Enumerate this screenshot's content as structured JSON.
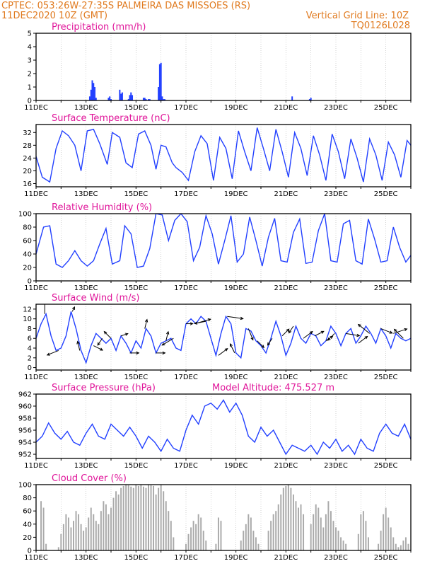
{
  "header": {
    "line1": "CPTEC:   053:26W-27:35S   PALMEIRA DAS MISSOES (RS)",
    "line2": "11DEC2020 10Z (GMT)",
    "grid_note": "Vertical Grid Line: 10Z",
    "code": "TQ0126L028"
  },
  "colors": {
    "header": "#e07a1f",
    "title": "#e0169a",
    "line": "#2240ff",
    "bar": "#2240ff",
    "cloud": "#a9a9a9",
    "arrow": "#000000"
  },
  "chart_data": [
    {
      "type": "bar",
      "id": "precip",
      "title": "Precipitation (mm/h)",
      "ylim": [
        0,
        5
      ],
      "yticks": [
        0,
        1,
        2,
        3,
        4,
        5
      ],
      "xlim": [
        0,
        15
      ],
      "xtick_labels": [
        "11DEC",
        "13DEC",
        "15DEC",
        "17DEC",
        "19DEC",
        "21DEC",
        "23DEC",
        "25DEC"
      ],
      "x": [
        2.15,
        2.2,
        2.25,
        2.3,
        2.35,
        2.4,
        2.9,
        2.95,
        3.0,
        3.35,
        3.4,
        3.45,
        3.7,
        3.75,
        3.8,
        3.85,
        4.3,
        4.35,
        4.4,
        4.5,
        4.55,
        4.9,
        4.95,
        5.0,
        5.05,
        5.1,
        5.15,
        10.25,
        10.95,
        11.0
      ],
      "values": [
        0.3,
        0.8,
        1.5,
        1.3,
        1.0,
        0.2,
        0.2,
        0.3,
        0.1,
        0.8,
        0.5,
        0.6,
        0.1,
        0.4,
        0.6,
        0.4,
        0.2,
        0.2,
        0.1,
        0.1,
        0.1,
        1.0,
        2.7,
        2.8,
        0.3,
        0.1,
        0.1,
        0.3,
        0.1,
        0.2
      ]
    },
    {
      "type": "line",
      "id": "temperature",
      "title": "Surface Temperature (nC)",
      "ylim": [
        15,
        34.5
      ],
      "yticks": [
        16,
        20,
        24,
        28,
        32
      ],
      "xlim": [
        0,
        15
      ],
      "xtick_labels": [
        "11DEC",
        "13DEC",
        "15DEC",
        "17DEC",
        "19DEC",
        "21DEC",
        "23DEC",
        "25DEC"
      ],
      "x": [
        0,
        0.25,
        0.55,
        0.8,
        1.05,
        1.3,
        1.55,
        1.8,
        2.05,
        2.3,
        2.55,
        2.85,
        3.05,
        3.35,
        3.6,
        3.85,
        4.1,
        4.35,
        4.6,
        4.8,
        5.0,
        5.2,
        5.45,
        5.6,
        5.85,
        6.1,
        6.35,
        6.6,
        6.85,
        7.1,
        7.35,
        7.6,
        7.85,
        8.1,
        8.35,
        8.6,
        8.85,
        9.1,
        9.35,
        9.6,
        9.85,
        10.1,
        10.35,
        10.6,
        10.85,
        11.1,
        11.35,
        11.6,
        11.85,
        12.1,
        12.35,
        12.6,
        12.85,
        13.1,
        13.35,
        13.6,
        13.85,
        14.1,
        14.35,
        14.6,
        14.85,
        15.0
      ],
      "values": [
        24.5,
        18.0,
        16.5,
        27.0,
        32.5,
        31.0,
        28.0,
        20.0,
        32.5,
        33.0,
        28.5,
        22.0,
        32.0,
        30.5,
        22.5,
        21.0,
        31.5,
        32.5,
        28.0,
        20.5,
        28.0,
        27.5,
        22.5,
        21.0,
        19.5,
        17.0,
        26.0,
        31.0,
        28.5,
        17.0,
        30.5,
        27.0,
        17.5,
        32.5,
        26.0,
        20.0,
        33.5,
        27.0,
        20.0,
        33.0,
        26.0,
        18.0,
        32.0,
        27.0,
        18.5,
        31.0,
        25.0,
        17.0,
        31.5,
        26.0,
        17.5,
        30.0,
        24.0,
        16.5,
        30.0,
        25.0,
        17.0,
        29.0,
        25.0,
        18.0,
        29.5,
        28.0
      ]
    },
    {
      "type": "line",
      "id": "humidity",
      "title": "Relative Humidity (%)",
      "ylim": [
        0,
        100
      ],
      "yticks": [
        0,
        20,
        40,
        60,
        80,
        100
      ],
      "xlim": [
        0,
        15
      ],
      "xtick_labels": [
        "11DEC",
        "13DEC",
        "15DEC",
        "17DEC",
        "19DEC",
        "21DEC",
        "23DEC",
        "25DEC"
      ],
      "x": [
        0,
        0.3,
        0.55,
        0.8,
        1.05,
        1.3,
        1.55,
        1.8,
        2.05,
        2.3,
        2.55,
        2.8,
        3.05,
        3.35,
        3.55,
        3.8,
        4.05,
        4.3,
        4.55,
        4.8,
        5.05,
        5.3,
        5.55,
        5.8,
        6.05,
        6.3,
        6.55,
        6.8,
        7.05,
        7.3,
        7.55,
        7.8,
        8.05,
        8.3,
        8.55,
        8.8,
        9.05,
        9.3,
        9.55,
        9.8,
        10.05,
        10.3,
        10.55,
        10.8,
        11.05,
        11.3,
        11.55,
        11.8,
        12.05,
        12.3,
        12.55,
        12.8,
        13.05,
        13.3,
        13.55,
        13.8,
        14.05,
        14.3,
        14.55,
        14.8,
        15.0
      ],
      "values": [
        40,
        80,
        82,
        25,
        20,
        30,
        45,
        30,
        22,
        30,
        55,
        78,
        25,
        30,
        82,
        70,
        20,
        22,
        48,
        100,
        98,
        60,
        90,
        100,
        88,
        30,
        50,
        97,
        70,
        25,
        60,
        97,
        28,
        40,
        95,
        60,
        22,
        65,
        93,
        30,
        28,
        72,
        92,
        26,
        28,
        75,
        100,
        30,
        28,
        85,
        90,
        30,
        25,
        92,
        62,
        28,
        30,
        80,
        50,
        28,
        38
      ]
    },
    {
      "type": "line",
      "id": "wind",
      "title": "Surface Wind (m/s)",
      "ylim": [
        -0.5,
        13
      ],
      "yticks": [
        0,
        2,
        4,
        6,
        8,
        10,
        12
      ],
      "xlim": [
        0,
        15
      ],
      "xtick_labels": [
        "11DEC",
        "13DEC",
        "15DEC",
        "17DEC",
        "19DEC",
        "21DEC",
        "23DEC",
        "25DEC"
      ],
      "x": [
        0,
        0.2,
        0.4,
        0.6,
        0.8,
        1.0,
        1.2,
        1.4,
        1.6,
        1.8,
        2.0,
        2.2,
        2.4,
        2.6,
        2.8,
        3.0,
        3.2,
        3.4,
        3.6,
        3.8,
        4.0,
        4.2,
        4.4,
        4.6,
        4.8,
        5.0,
        5.2,
        5.4,
        5.6,
        5.8,
        6.0,
        6.2,
        6.4,
        6.6,
        6.8,
        7.0,
        7.2,
        7.4,
        7.6,
        7.8,
        8.0,
        8.2,
        8.4,
        8.6,
        8.8,
        9.0,
        9.2,
        9.4,
        9.6,
        9.8,
        10.0,
        10.2,
        10.4,
        10.6,
        10.8,
        11.0,
        11.2,
        11.4,
        11.6,
        11.8,
        12.0,
        12.2,
        12.4,
        12.6,
        12.8,
        13.0,
        13.2,
        13.4,
        13.6,
        13.8,
        14.0,
        14.2,
        14.4,
        14.6,
        14.8,
        15.0
      ],
      "values": [
        6.0,
        9.0,
        11.0,
        6.5,
        3.5,
        4.0,
        6.5,
        11.5,
        8.0,
        3.5,
        1.0,
        4.5,
        7.0,
        6.0,
        5.0,
        6.0,
        3.5,
        6.5,
        5.0,
        3.0,
        5.5,
        4.0,
        8.0,
        6.5,
        3.0,
        5.0,
        5.5,
        6.0,
        4.0,
        3.5,
        9.0,
        10.0,
        9.0,
        10.5,
        9.5,
        6.0,
        2.5,
        7.0,
        10.5,
        9.0,
        3.0,
        2.0,
        8.0,
        7.5,
        5.5,
        4.5,
        3.0,
        6.0,
        9.5,
        6.5,
        2.5,
        5.0,
        8.5,
        6.0,
        5.0,
        7.0,
        6.5,
        4.5,
        5.5,
        8.5,
        7.0,
        4.5,
        7.0,
        8.0,
        5.0,
        6.5,
        8.5,
        7.0,
        5.0,
        8.0,
        6.5,
        4.0,
        7.0,
        6.0,
        5.5,
        6.0
      ],
      "vectors": {
        "x": [
          0.35,
          0.9,
          1.45,
          1.75,
          2.3,
          2.65,
          3.0,
          3.4,
          3.75,
          4.35,
          4.8,
          5.2,
          5.5,
          6.0,
          6.35,
          6.8,
          7.3,
          7.65,
          7.95,
          8.5,
          8.85,
          9.45,
          9.85,
          10.3,
          10.7,
          11.15,
          11.6,
          11.95,
          12.4,
          12.9,
          13.35,
          13.8,
          14.3,
          14.7
        ],
        "u": [
          0,
          -5,
          1,
          -1,
          4,
          -2,
          -3,
          3,
          4,
          1,
          4,
          1,
          -5,
          3,
          7,
          -5,
          4,
          7,
          -2,
          2,
          3,
          -2,
          3,
          -2,
          4,
          4,
          3,
          -3,
          6,
          4,
          -5,
          5,
          6,
          -4
        ],
        "v": [
          7,
          -2,
          2,
          4,
          -2,
          -3,
          3,
          1,
          0,
          4,
          0,
          4,
          -3,
          0,
          2,
          -1,
          3,
          -1,
          4,
          -5,
          -3,
          -3,
          3,
          -3,
          3,
          2,
          2,
          -3,
          -1,
          3,
          4,
          -2,
          2,
          4
        ]
      }
    },
    {
      "type": "line",
      "id": "pressure",
      "title": "Surface Pressure (hPa)",
      "subtitle": "Model Altitude: 475.527 m",
      "ylim": [
        951.3,
        962
      ],
      "yticks": [
        952,
        954,
        956,
        958,
        960,
        962
      ],
      "xlim": [
        0,
        15
      ],
      "xtick_labels": [
        "11DEC",
        "13DEC",
        "15DEC",
        "17DEC",
        "19DEC",
        "21DEC",
        "23DEC",
        "25DEC"
      ],
      "x": [
        0,
        0.25,
        0.5,
        0.75,
        1.0,
        1.25,
        1.5,
        1.75,
        2.0,
        2.25,
        2.5,
        2.75,
        3.0,
        3.25,
        3.5,
        3.75,
        4.0,
        4.25,
        4.5,
        4.75,
        5.0,
        5.25,
        5.5,
        5.75,
        6.0,
        6.25,
        6.5,
        6.75,
        7.0,
        7.25,
        7.5,
        7.75,
        8.0,
        8.25,
        8.5,
        8.75,
        9.0,
        9.25,
        9.5,
        9.75,
        10.0,
        10.25,
        10.5,
        10.75,
        11.0,
        11.25,
        11.5,
        11.75,
        12.0,
        12.25,
        12.5,
        12.75,
        13.0,
        13.25,
        13.5,
        13.75,
        14.0,
        14.25,
        14.5,
        14.75,
        15.0
      ],
      "values": [
        954.0,
        955.0,
        957.2,
        955.5,
        954.5,
        955.8,
        954.0,
        953.5,
        955.5,
        957.0,
        955.0,
        954.5,
        957.0,
        956.0,
        955.0,
        956.5,
        955.0,
        953.0,
        955.0,
        954.0,
        952.5,
        954.5,
        953.0,
        952.5,
        956.0,
        958.5,
        957.0,
        960.0,
        960.5,
        959.5,
        961.0,
        959.0,
        960.5,
        958.5,
        955.0,
        954.0,
        956.5,
        955.0,
        956.0,
        954.0,
        952.0,
        953.5,
        953.0,
        952.5,
        953.5,
        952.0,
        954.0,
        953.0,
        954.5,
        952.5,
        953.5,
        952.0,
        954.5,
        953.0,
        952.5,
        955.5,
        957.0,
        955.5,
        955.0,
        957.0,
        954.5
      ]
    },
    {
      "type": "bar",
      "id": "cloud",
      "title": "Cloud Cover (%)",
      "ylim": [
        0,
        100
      ],
      "yticks": [
        0,
        20,
        40,
        60,
        80,
        100
      ],
      "xlim": [
        0,
        15
      ],
      "xtick_labels": [
        "11DEC",
        "13DEC",
        "15DEC",
        "17DEC",
        "19DEC",
        "21DEC",
        "23DEC",
        "25DEC"
      ],
      "x": [
        0.2,
        0.3,
        0.4,
        0.9,
        1.0,
        1.1,
        1.2,
        1.3,
        1.4,
        1.5,
        1.6,
        1.7,
        1.8,
        1.9,
        2.0,
        2.1,
        2.2,
        2.3,
        2.4,
        2.5,
        2.6,
        2.7,
        2.8,
        2.9,
        3.0,
        3.1,
        3.2,
        3.3,
        3.4,
        3.5,
        3.6,
        3.7,
        3.8,
        3.9,
        4.0,
        4.1,
        4.2,
        4.3,
        4.4,
        4.5,
        4.6,
        4.7,
        4.8,
        4.9,
        5.0,
        5.1,
        5.2,
        5.3,
        5.4,
        5.5,
        6.0,
        6.1,
        6.2,
        6.3,
        6.4,
        6.5,
        6.6,
        6.7,
        6.8,
        7.2,
        7.3,
        7.4,
        8.2,
        8.3,
        8.4,
        8.5,
        8.6,
        8.7,
        8.8,
        8.9,
        9.3,
        9.4,
        9.5,
        9.6,
        9.7,
        9.8,
        9.9,
        10.0,
        10.1,
        10.2,
        10.3,
        10.4,
        10.5,
        10.6,
        10.7,
        11.0,
        11.1,
        11.2,
        11.3,
        11.4,
        11.5,
        11.6,
        11.7,
        11.8,
        11.9,
        12.0,
        12.1,
        12.2,
        12.3,
        12.4,
        12.9,
        13.0,
        13.1,
        13.2,
        13.3,
        13.7,
        13.8,
        13.9,
        14.0,
        14.1,
        14.2,
        14.3,
        14.4,
        14.5,
        14.6,
        14.7,
        14.8,
        14.9
      ],
      "values": [
        75,
        65,
        10,
        5,
        25,
        40,
        55,
        50,
        35,
        45,
        60,
        55,
        40,
        30,
        35,
        50,
        65,
        55,
        45,
        40,
        60,
        75,
        70,
        55,
        65,
        80,
        90,
        85,
        95,
        98,
        100,
        99,
        97,
        95,
        100,
        98,
        100,
        97,
        95,
        100,
        99,
        98,
        85,
        95,
        100,
        90,
        75,
        60,
        45,
        20,
        10,
        25,
        35,
        45,
        40,
        55,
        50,
        30,
        15,
        10,
        50,
        45,
        15,
        30,
        40,
        55,
        50,
        30,
        20,
        10,
        30,
        45,
        55,
        60,
        70,
        85,
        95,
        98,
        100,
        95,
        85,
        75,
        65,
        70,
        55,
        40,
        55,
        70,
        65,
        50,
        35,
        55,
        75,
        60,
        45,
        35,
        30,
        20,
        15,
        10,
        25,
        55,
        60,
        45,
        20,
        10,
        30,
        55,
        65,
        50,
        35,
        20,
        10,
        5,
        8,
        15,
        20,
        10
      ]
    }
  ]
}
